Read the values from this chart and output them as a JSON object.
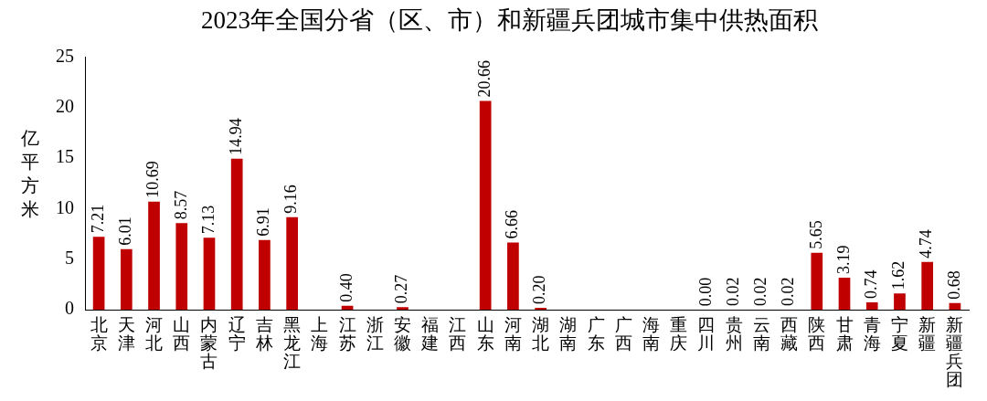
{
  "chart_data": {
    "type": "bar",
    "title": "2023年全国分省（区、市）和新疆兵团城市集中供热面积",
    "ylabel": "亿平方米",
    "categories": [
      "北京",
      "天津",
      "河北",
      "山西",
      "内蒙古",
      "辽宁",
      "吉林",
      "黑龙江",
      "上海",
      "江苏",
      "浙江",
      "安徽",
      "福建",
      "江西",
      "山东",
      "河南",
      "湖北",
      "湖南",
      "广东",
      "广西",
      "海南",
      "重庆",
      "四川",
      "贵州",
      "云南",
      "西藏",
      "陕西",
      "甘肃",
      "青海",
      "宁夏",
      "新疆",
      "新疆兵团"
    ],
    "values": [
      7.21,
      6.01,
      10.69,
      8.57,
      7.13,
      14.94,
      6.91,
      9.16,
      null,
      0.4,
      null,
      0.27,
      null,
      null,
      20.66,
      6.66,
      0.2,
      null,
      null,
      null,
      null,
      null,
      0.0,
      0.02,
      0.02,
      0.02,
      5.65,
      3.19,
      0.74,
      1.62,
      4.74,
      0.68
    ],
    "value_labels": [
      "7.21",
      "6.01",
      "10.69",
      "8.57",
      "7.13",
      "14.94",
      "6.91",
      "9.16",
      null,
      "0.40",
      null,
      "0.27",
      null,
      null,
      "20.66",
      "6.66",
      "0.20",
      null,
      null,
      null,
      null,
      null,
      "0.00",
      "0.02",
      "0.02",
      "0.02",
      "5.65",
      "3.19",
      "0.74",
      "1.62",
      "4.74",
      "0.68"
    ],
    "color": "#c00000",
    "ylim": [
      0,
      25
    ],
    "yticks": [
      0,
      5,
      10,
      15,
      20,
      25
    ],
    "grid": false,
    "legend": false
  }
}
